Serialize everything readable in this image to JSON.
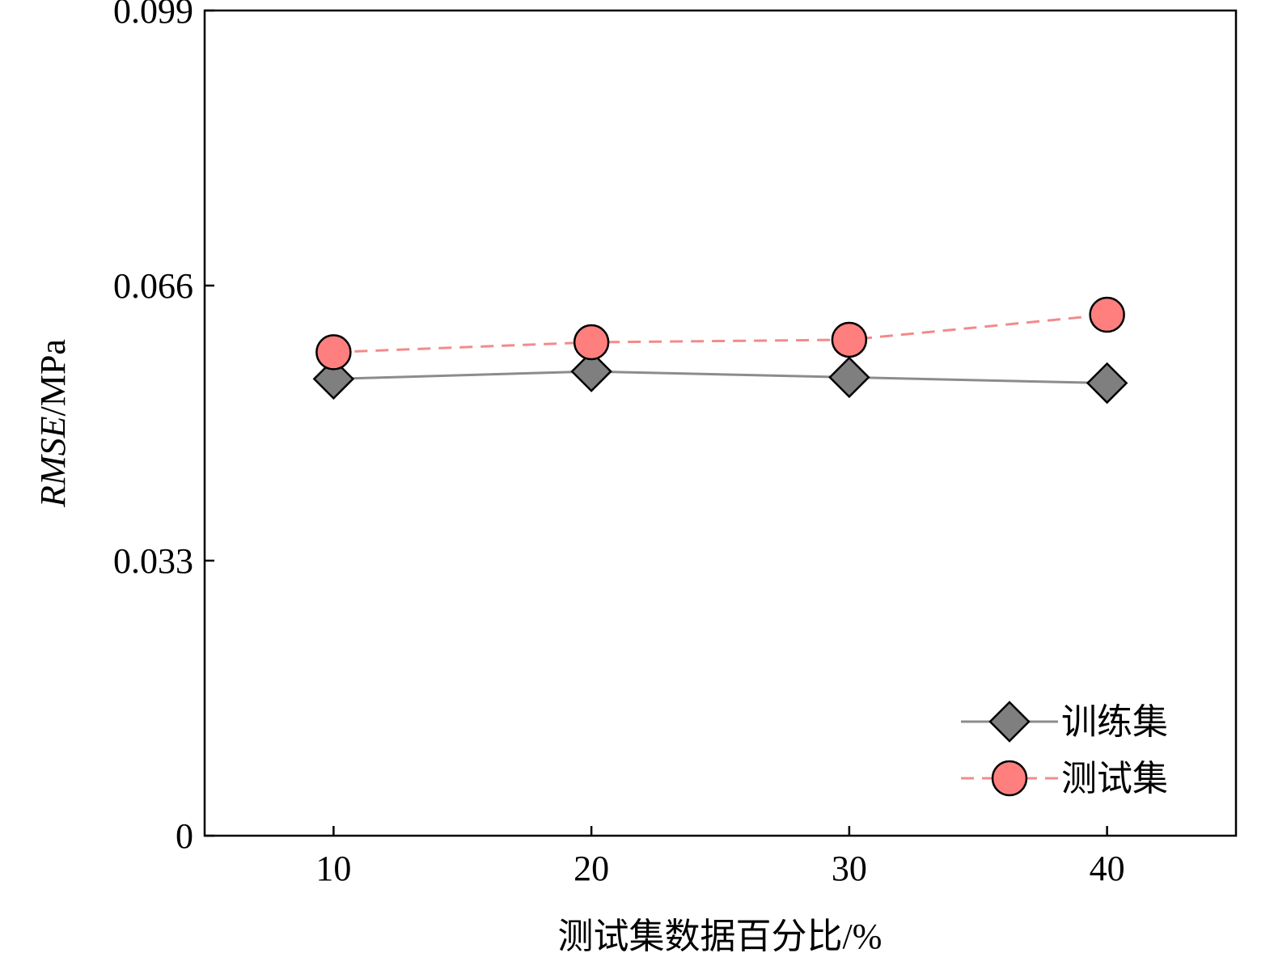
{
  "chart_data": {
    "type": "line",
    "title": "",
    "xlabel": "测试集数据百分比/%",
    "ylabel": {
      "italic_part": "RMSE",
      "normal_part": "/MPa"
    },
    "x": [
      10,
      20,
      30,
      40
    ],
    "x_ticks": [
      "10",
      "20",
      "30",
      "40"
    ],
    "xlim": [
      5,
      45
    ],
    "ylim": [
      0,
      0.099
    ],
    "y_ticks": [
      "0",
      "0.033",
      "0.066",
      "0.099"
    ],
    "y_tick_values": [
      0,
      0.033,
      0.066,
      0.099
    ],
    "grid": false,
    "legend_position": "bottom-right",
    "series": [
      {
        "name": "训练集",
        "values": [
          0.0548,
          0.0557,
          0.055,
          0.0543
        ],
        "marker": "diamond",
        "line_style": "solid",
        "line_color": "#8c8c8c",
        "marker_fill": "#7f7f7f"
      },
      {
        "name": "测试集",
        "values": [
          0.058,
          0.0592,
          0.0595,
          0.0625
        ],
        "marker": "circle",
        "line_style": "dashed",
        "line_color": "#f28b8b",
        "marker_fill": "#ff7f7f"
      }
    ]
  }
}
